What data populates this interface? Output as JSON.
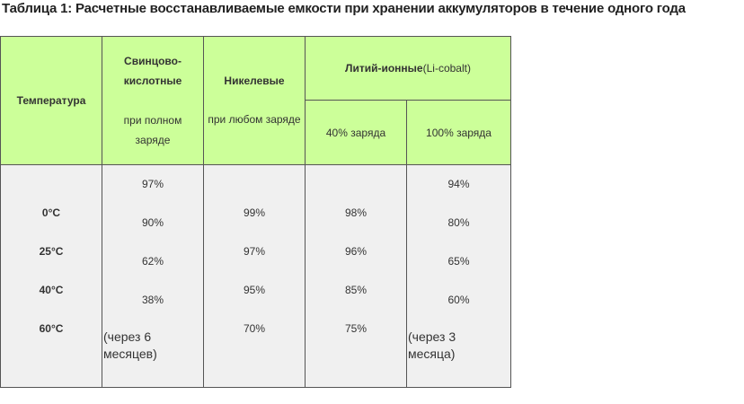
{
  "caption": {
    "num": "Таблица 1:",
    "text": " Расчетные восстанавливаемые емкости при хранении аккумуляторов в течение одного года"
  },
  "headers": {
    "temperature": "Температура",
    "lead_acid_title_1": "Свинцово-",
    "lead_acid_title_2": "кислотные",
    "lead_acid_sub_1": "при полном",
    "lead_acid_sub_2": "заряде",
    "nickel_title": "Никелевые",
    "nickel_sub": "при любом заряде",
    "li_ion_title": "Литий-ионные",
    "li_ion_sub": "(Li-cobalt)",
    "li_40": "40% заряда",
    "li_100": "100% заряда"
  },
  "temperatures": [
    "0°C",
    "25°C",
    "40°C",
    "60°C"
  ],
  "lead_acid": {
    "values": [
      "97%",
      "90%",
      "62%",
      "38%"
    ],
    "note_1": "(через 6",
    "note_2": "месяцев)"
  },
  "nickel": {
    "values": [
      "99%",
      "97%",
      "95%",
      "70%"
    ]
  },
  "li_40": {
    "values": [
      "98%",
      "96%",
      "85%",
      "75%"
    ]
  },
  "li_100": {
    "values": [
      "94%",
      "80%",
      "65%",
      "60%"
    ],
    "note_1": "(через 3",
    "note_2": "месяца)"
  }
}
